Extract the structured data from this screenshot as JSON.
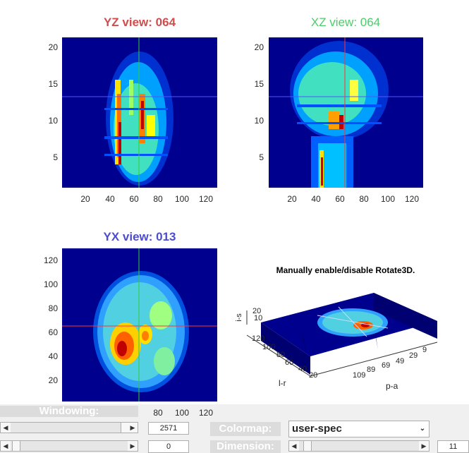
{
  "views": {
    "yz": {
      "title": "YZ view: 064",
      "color": "#d14d4d"
    },
    "xz": {
      "title": "XZ view: 064",
      "color": "#4dcc6b"
    },
    "yx": {
      "title": "YX view: 013",
      "color": "#4d4dcc"
    }
  },
  "ticks": {
    "z_y": [
      "20",
      "15",
      "10",
      "5"
    ],
    "x_top": [
      "20",
      "40",
      "60",
      "80",
      "100",
      "120"
    ],
    "yx_y": [
      "120",
      "100",
      "80",
      "60",
      "40",
      "20"
    ],
    "x_bottom": [
      "80",
      "100",
      "120"
    ]
  },
  "rotate3d": {
    "title": "Manually enable/disable Rotate3D.",
    "z_label": "i-s",
    "z_ticks": [
      "20",
      "10"
    ],
    "lr_label": "l-r",
    "lr_ticks": [
      "120",
      "100",
      "80",
      "60",
      "40",
      "20"
    ],
    "pa_label": "p-a",
    "pa_ticks": [
      "109",
      "89",
      "69",
      "49",
      "29",
      "9"
    ]
  },
  "controls": {
    "windowing_label": "Windowing:",
    "windowing_value": "2571",
    "second_value": "0",
    "colormap_label": "Colormap:",
    "colormap_value": "user-spec",
    "dimension_label": "Dimension:",
    "dimension_value": "11"
  },
  "colors": {
    "crosshair_red": "#ff3333",
    "crosshair_green": "#33cc33",
    "crosshair_blue": "#5555ff",
    "background_blue": "#00008f"
  }
}
